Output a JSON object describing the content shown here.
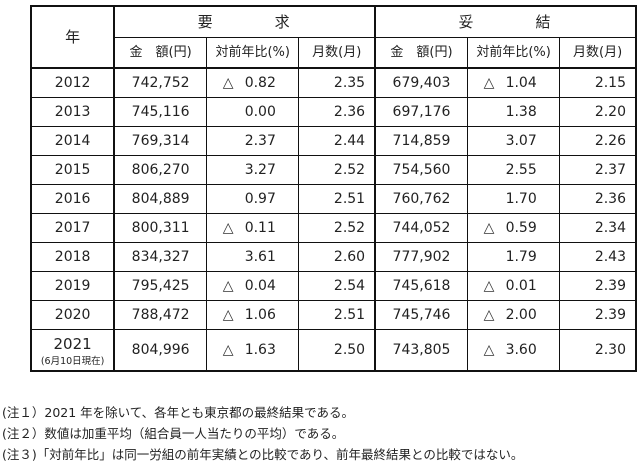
{
  "table": {
    "year_header": "年",
    "groups": [
      {
        "title_left": "要",
        "title_right": "求"
      },
      {
        "title_left": "妥",
        "title_right": "結"
      }
    ],
    "subheaders": [
      "金　額(円)",
      "対前年比(%)",
      "月数(月)"
    ],
    "decrease_symbol": "△",
    "rows": [
      {
        "year": "2012",
        "demand": {
          "amount": "742,752",
          "yoy": "0.82",
          "yoy_negative": true,
          "months": "2.35"
        },
        "settled": {
          "amount": "679,403",
          "yoy": "1.04",
          "yoy_negative": true,
          "months": "2.15"
        }
      },
      {
        "year": "2013",
        "demand": {
          "amount": "745,116",
          "yoy": "0.00",
          "yoy_negative": false,
          "months": "2.36"
        },
        "settled": {
          "amount": "697,176",
          "yoy": "1.38",
          "yoy_negative": false,
          "months": "2.20"
        }
      },
      {
        "year": "2014",
        "demand": {
          "amount": "769,314",
          "yoy": "2.37",
          "yoy_negative": false,
          "months": "2.44"
        },
        "settled": {
          "amount": "714,859",
          "yoy": "3.07",
          "yoy_negative": false,
          "months": "2.26"
        }
      },
      {
        "year": "2015",
        "demand": {
          "amount": "806,270",
          "yoy": "3.27",
          "yoy_negative": false,
          "months": "2.52"
        },
        "settled": {
          "amount": "754,560",
          "yoy": "2.55",
          "yoy_negative": false,
          "months": "2.37"
        }
      },
      {
        "year": "2016",
        "demand": {
          "amount": "804,889",
          "yoy": "0.97",
          "yoy_negative": false,
          "months": "2.51"
        },
        "settled": {
          "amount": "760,762",
          "yoy": "1.70",
          "yoy_negative": false,
          "months": "2.36"
        }
      },
      {
        "year": "2017",
        "demand": {
          "amount": "800,311",
          "yoy": "0.11",
          "yoy_negative": true,
          "months": "2.52"
        },
        "settled": {
          "amount": "744,052",
          "yoy": "0.59",
          "yoy_negative": true,
          "months": "2.34"
        }
      },
      {
        "year": "2018",
        "demand": {
          "amount": "834,327",
          "yoy": "3.61",
          "yoy_negative": false,
          "months": "2.60"
        },
        "settled": {
          "amount": "777,902",
          "yoy": "1.79",
          "yoy_negative": false,
          "months": "2.43"
        }
      },
      {
        "year": "2019",
        "demand": {
          "amount": "795,425",
          "yoy": "0.04",
          "yoy_negative": true,
          "months": "2.54"
        },
        "settled": {
          "amount": "745,618",
          "yoy": "0.01",
          "yoy_negative": true,
          "months": "2.39"
        }
      },
      {
        "year": "2020",
        "demand": {
          "amount": "788,472",
          "yoy": "1.06",
          "yoy_negative": true,
          "months": "2.51"
        },
        "settled": {
          "amount": "745,746",
          "yoy": "2.00",
          "yoy_negative": true,
          "months": "2.39"
        }
      },
      {
        "year": "2021",
        "year_note": "(6月10日現在)",
        "demand": {
          "amount": "804,996",
          "yoy": "1.63",
          "yoy_negative": true,
          "months": "2.50"
        },
        "settled": {
          "amount": "743,805",
          "yoy": "3.60",
          "yoy_negative": true,
          "months": "2.30"
        }
      }
    ]
  },
  "notes": [
    "(注１）2021 年を除いて、各年とも東京都の最終結果である。",
    "(注２）数値は加重平均（組合員一人当たりの平均）である。",
    "(注３)「対前年比」は同一労組の前年実績との比較であり、前年最終結果との比較ではない。"
  ]
}
